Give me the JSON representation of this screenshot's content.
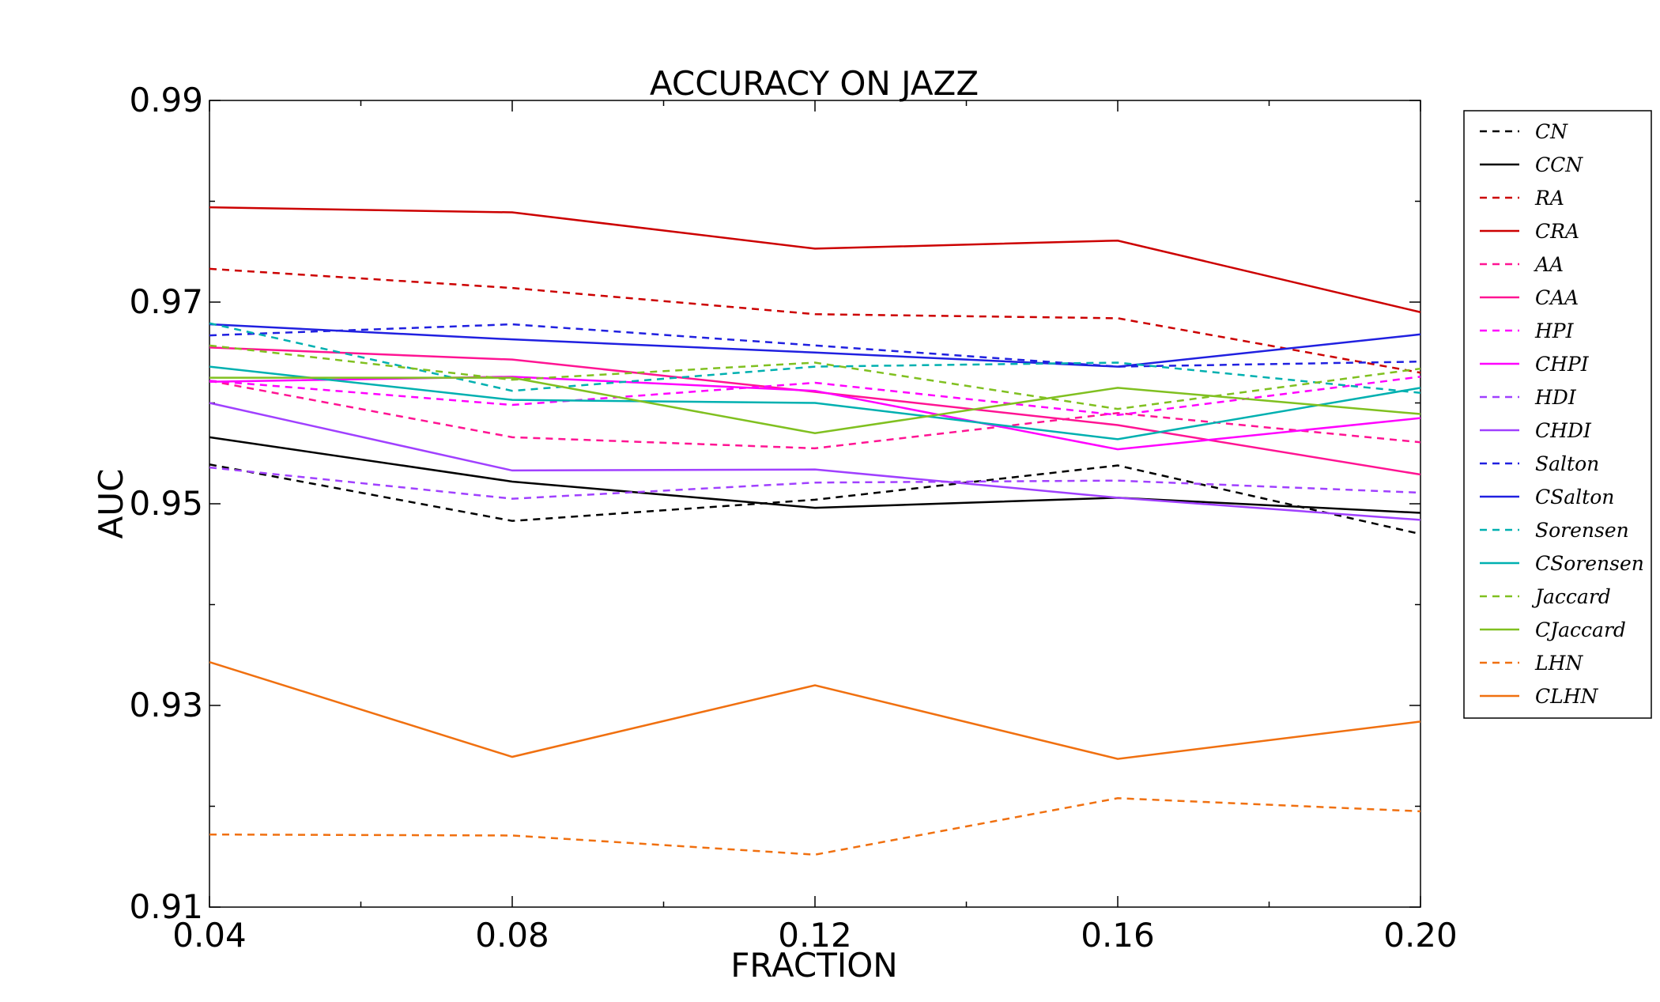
{
  "chart_data": {
    "type": "line",
    "title": "ACCURACY ON JAZZ",
    "xlabel": "FRACTION",
    "ylabel": "AUC",
    "x": [
      0.04,
      0.08,
      0.12,
      0.16,
      0.2
    ],
    "x_tick_labels": [
      "0.04",
      "0.08",
      "0.12",
      "0.16",
      "0.20"
    ],
    "y_tick_labels": [
      "0.91",
      "0.93",
      "0.95",
      "0.97",
      "0.99"
    ],
    "xlim": [
      0.04,
      0.2
    ],
    "ylim": [
      0.91,
      0.99
    ],
    "grid": false,
    "legend": "outside-right",
    "series": [
      {
        "name": "CN",
        "color": "#000000",
        "dash": true,
        "values": [
          0.9539,
          0.9483,
          0.9504,
          0.9538,
          0.947
        ]
      },
      {
        "name": "CCN",
        "color": "#000000",
        "dash": false,
        "values": [
          0.9566,
          0.9522,
          0.9496,
          0.9506,
          0.9491
        ]
      },
      {
        "name": "RA",
        "color": "#cc0000",
        "dash": true,
        "values": [
          0.9733,
          0.9714,
          0.9688,
          0.9684,
          0.963
        ]
      },
      {
        "name": "CRA",
        "color": "#cc0000",
        "dash": false,
        "values": [
          0.9794,
          0.9789,
          0.9753,
          0.9761,
          0.969
        ]
      },
      {
        "name": "AA",
        "color": "#ff1493",
        "dash": true,
        "values": [
          0.9622,
          0.9566,
          0.9555,
          0.959,
          0.9561
        ]
      },
      {
        "name": "CAA",
        "color": "#ff1493",
        "dash": false,
        "values": [
          0.9655,
          0.9643,
          0.9611,
          0.9578,
          0.9529
        ]
      },
      {
        "name": "HPI",
        "color": "#ff00ff",
        "dash": true,
        "values": [
          0.9622,
          0.9598,
          0.962,
          0.9588,
          0.9626
        ]
      },
      {
        "name": "CHPI",
        "color": "#ff00ff",
        "dash": false,
        "values": [
          0.9621,
          0.9626,
          0.9612,
          0.9554,
          0.9585
        ]
      },
      {
        "name": "HDI",
        "color": "#a040ff",
        "dash": true,
        "values": [
          0.9536,
          0.9505,
          0.9521,
          0.9523,
          0.9511
        ]
      },
      {
        "name": "CHDI",
        "color": "#a040ff",
        "dash": false,
        "values": [
          0.96,
          0.9533,
          0.9534,
          0.9506,
          0.9484
        ]
      },
      {
        "name": "Salton",
        "color": "#2020e0",
        "dash": true,
        "values": [
          0.9667,
          0.9678,
          0.9657,
          0.9636,
          0.9641
        ]
      },
      {
        "name": "CSalton",
        "color": "#2020e0",
        "dash": false,
        "values": [
          0.9678,
          0.9663,
          0.965,
          0.9636,
          0.9668
        ]
      },
      {
        "name": "Sorensen",
        "color": "#00b0b0",
        "dash": true,
        "values": [
          0.9679,
          0.9612,
          0.9636,
          0.964,
          0.961
        ]
      },
      {
        "name": "CSorensen",
        "color": "#00b0b0",
        "dash": false,
        "values": [
          0.9636,
          0.9603,
          0.96,
          0.9564,
          0.9615
        ]
      },
      {
        "name": "Jaccard",
        "color": "#80c020",
        "dash": true,
        "values": [
          0.9657,
          0.9623,
          0.964,
          0.9594,
          0.9634
        ]
      },
      {
        "name": "CJaccard",
        "color": "#80c020",
        "dash": false,
        "values": [
          0.9625,
          0.9625,
          0.957,
          0.9615,
          0.9589
        ]
      },
      {
        "name": "LHN",
        "color": "#f07010",
        "dash": true,
        "values": [
          0.9172,
          0.9171,
          0.9152,
          0.9208,
          0.9195
        ]
      },
      {
        "name": "CLHN",
        "color": "#f07010",
        "dash": false,
        "values": [
          0.9343,
          0.9249,
          0.932,
          0.9247,
          0.9284
        ]
      }
    ]
  }
}
